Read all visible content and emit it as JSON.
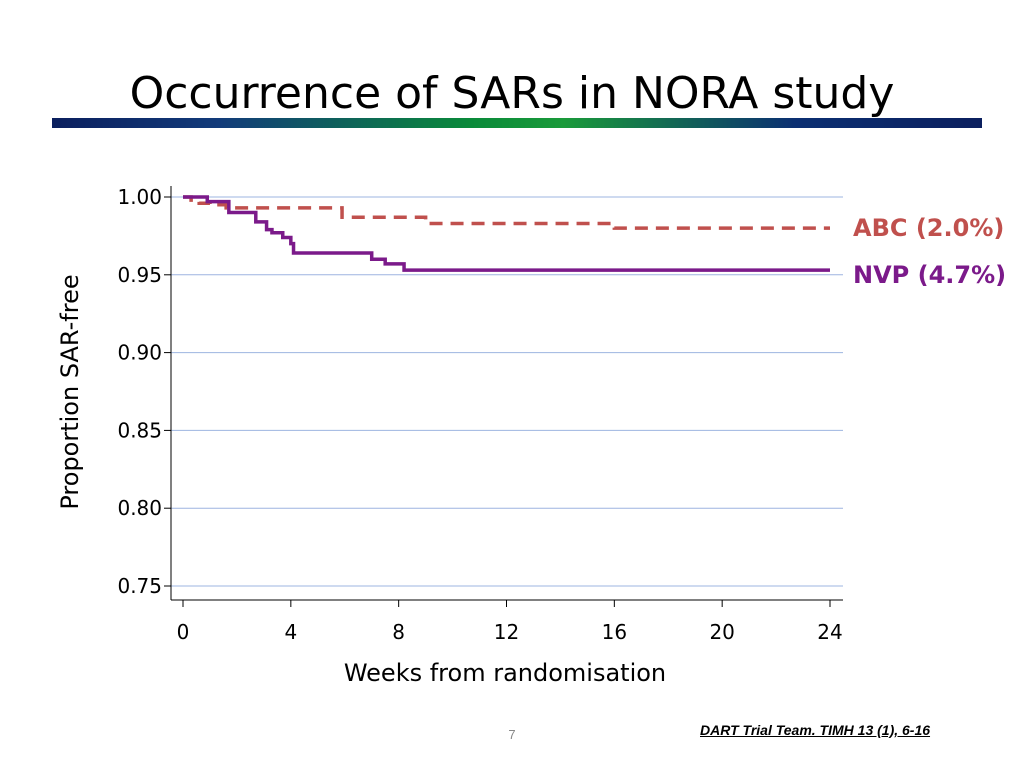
{
  "slide": {
    "title": "Occurrence of SARs in NORA study",
    "citation": "DART Trial Team. TIMH 13 (1), 6-16",
    "page_number": "7"
  },
  "chart_data": {
    "type": "line",
    "xlabel": "Weeks from randomisation",
    "ylabel": "Proportion SAR-free",
    "xlim": [
      0,
      24
    ],
    "ylim": [
      0.75,
      1.0
    ],
    "x_ticks": [
      "0",
      "4",
      "8",
      "12",
      "16",
      "20",
      "24"
    ],
    "y_ticks": [
      "0.75",
      "0.80",
      "0.85",
      "0.90",
      "0.95",
      "1.00"
    ],
    "grid": true,
    "legend": "right, labels beside line ends",
    "series": [
      {
        "name": "ABC (2.0%)",
        "color": "#c0504d",
        "style": "dashed",
        "step": true,
        "points": [
          [
            0,
            1.0
          ],
          [
            0.3,
            0.998
          ],
          [
            0.6,
            0.996
          ],
          [
            1.0,
            0.995
          ],
          [
            1.6,
            0.993
          ],
          [
            5.9,
            0.987
          ],
          [
            9.0,
            0.983
          ],
          [
            16.0,
            0.98
          ],
          [
            24,
            0.98
          ]
        ]
      },
      {
        "name": "NVP (4.7%)",
        "color": "#7b1a8a",
        "style": "solid",
        "step": true,
        "points": [
          [
            0,
            1.0
          ],
          [
            0.9,
            0.997
          ],
          [
            1.7,
            0.99
          ],
          [
            2.7,
            0.984
          ],
          [
            3.1,
            0.979
          ],
          [
            3.3,
            0.977
          ],
          [
            3.7,
            0.974
          ],
          [
            4.0,
            0.97
          ],
          [
            4.1,
            0.964
          ],
          [
            7.0,
            0.96
          ],
          [
            7.5,
            0.957
          ],
          [
            8.2,
            0.953
          ],
          [
            24,
            0.953
          ]
        ]
      }
    ]
  }
}
